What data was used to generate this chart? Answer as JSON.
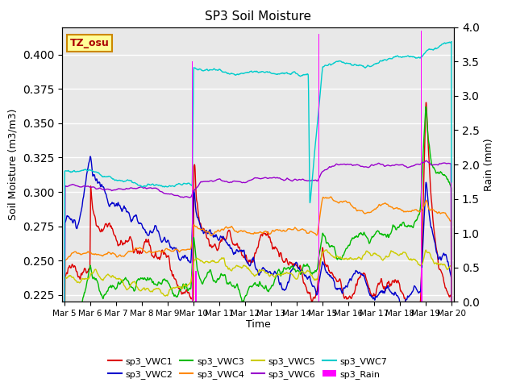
{
  "title": "SP3 Soil Moisture",
  "ylabel_left": "Soil Moisture (m3/m3)",
  "ylabel_right": "Rain (mm)",
  "xlabel": "Time",
  "ylim_left": [
    0.22,
    0.42
  ],
  "ylim_right": [
    0.0,
    4.0
  ],
  "background_color": "#e8e8e8",
  "tz_label": "TZ_osu",
  "tz_label_color": "#aa0000",
  "tz_box_color": "#ffff99",
  "tz_box_edge": "#cc8800",
  "series_colors": {
    "sp3_VWC1": "#dd0000",
    "sp3_VWC2": "#0000cc",
    "sp3_VWC3": "#00bb00",
    "sp3_VWC4": "#ff8800",
    "sp3_VWC5": "#cccc00",
    "sp3_VWC6": "#9900cc",
    "sp3_VWC7": "#00cccc",
    "sp3_Rain": "#ff00ff"
  },
  "x_tick_labels": [
    "Mar 5",
    "Mar 6",
    "Mar 7",
    "Mar 8",
    "Mar 9",
    "Mar 10",
    "Mar 11",
    "Mar 12",
    "Mar 13",
    "Mar 14",
    "Mar 15",
    "Mar 16",
    "Mar 17",
    "Mar 18",
    "Mar 19",
    "Mar 20"
  ],
  "x_tick_positions": [
    0,
    1,
    2,
    3,
    4,
    5,
    6,
    7,
    8,
    9,
    10,
    11,
    12,
    13,
    14,
    15
  ]
}
